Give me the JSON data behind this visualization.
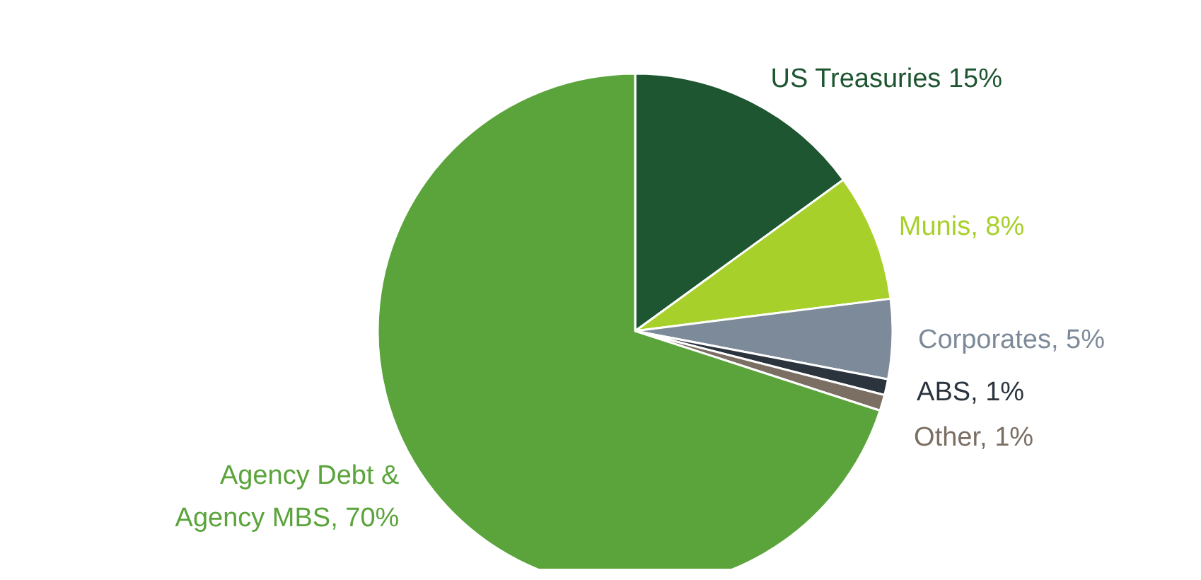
{
  "chart_data": {
    "type": "pie",
    "categories": [
      "US Treasuries 15%",
      "Munis, 8%",
      "Corporates, 5%",
      "ABS, 1%",
      "Other, 1%",
      "Agency Debt &\nAgency MBS, 70%"
    ],
    "values": [
      15,
      8,
      5,
      1,
      1,
      70
    ],
    "colors": [
      "#1d5631",
      "#a8d02b",
      "#7d8a99",
      "#2b333d",
      "#7b6e63",
      "#5aa43b"
    ],
    "legend": false
  }
}
